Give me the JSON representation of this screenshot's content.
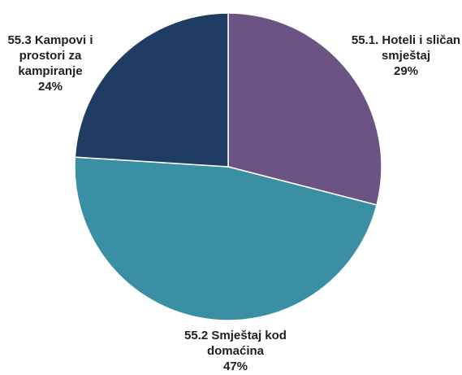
{
  "chart_data": {
    "type": "pie",
    "title": "",
    "start_angle_deg": 0,
    "direction": "clockwise",
    "slices": [
      {
        "name_lines": [
          "55.1. Hoteli i sličan",
          "smještaj"
        ],
        "value": 29,
        "percent_label": "29%",
        "color": "#6b5484"
      },
      {
        "name_lines": [
          "55.2 Smještaj kod",
          "domaćina"
        ],
        "value": 47,
        "percent_label": "47%",
        "color": "#3a8fa5"
      },
      {
        "name_lines": [
          "55.3 Kampovi i",
          "prostori za",
          "kampiranje"
        ],
        "value": 24,
        "percent_label": "24%",
        "color": "#1f3d63"
      }
    ],
    "legend": "none",
    "label_position": "outside"
  }
}
